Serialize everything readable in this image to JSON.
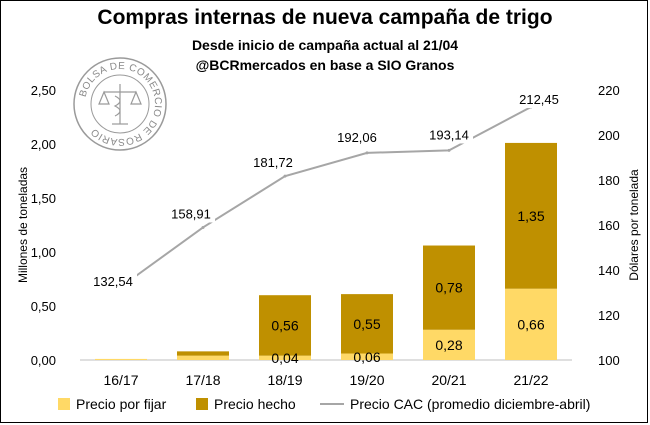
{
  "colors": {
    "por_fijar": "#FFD966",
    "hecho": "#BF9000",
    "cac_line": "#A6A6A6",
    "axis_text": "#000000",
    "baseline": "#BFBFBF"
  },
  "seal": {
    "text": "BOLSA DE COMERCIO DE ROSARIO",
    "icon": "scales-caduceus-seal-icon"
  },
  "chart_data": {
    "type": "bar",
    "title": "Compras internas de nueva campaña de trigo",
    "subtitle_1": "Desde inicio de campaña actual al 21/04",
    "subtitle_2": "@BCRmercados en base a SIO Granos",
    "categories": [
      "16/17",
      "17/18",
      "18/19",
      "19/20",
      "20/21",
      "21/22"
    ],
    "ylabel": "Millones de toneladas",
    "y2label": "Dólares por tonelada",
    "ylim": [
      0,
      2.5
    ],
    "y2lim": [
      100,
      220
    ],
    "yticks": [
      "0,00",
      "0,50",
      "1,00",
      "1,50",
      "2,00",
      "2,50"
    ],
    "y2ticks": [
      "100",
      "120",
      "140",
      "160",
      "180",
      "200",
      "220"
    ],
    "series": [
      {
        "name": "Precio por fijar",
        "kind": "stacked-bar",
        "values": [
          0.01,
          0.04,
          0.04,
          0.06,
          0.28,
          0.66
        ],
        "labels": [
          "",
          "",
          "0,04",
          "0,06",
          "0,28",
          "0,66"
        ]
      },
      {
        "name": "Precio hecho",
        "kind": "stacked-bar",
        "values": [
          0.0,
          0.04,
          0.56,
          0.55,
          0.78,
          1.35
        ],
        "labels": [
          "",
          "",
          "0,56",
          "0,55",
          "0,78",
          "1,35"
        ]
      },
      {
        "name": "Precio CAC (promedio diciembre-abril)",
        "kind": "line",
        "axis": "right",
        "values": [
          132.54,
          158.91,
          181.72,
          192.06,
          193.14,
          212.45
        ],
        "labels": [
          "132,54",
          "158,91",
          "181,72",
          "192,06",
          "193,14",
          "212,45"
        ]
      }
    ],
    "grid": false,
    "legend_position": "bottom"
  }
}
